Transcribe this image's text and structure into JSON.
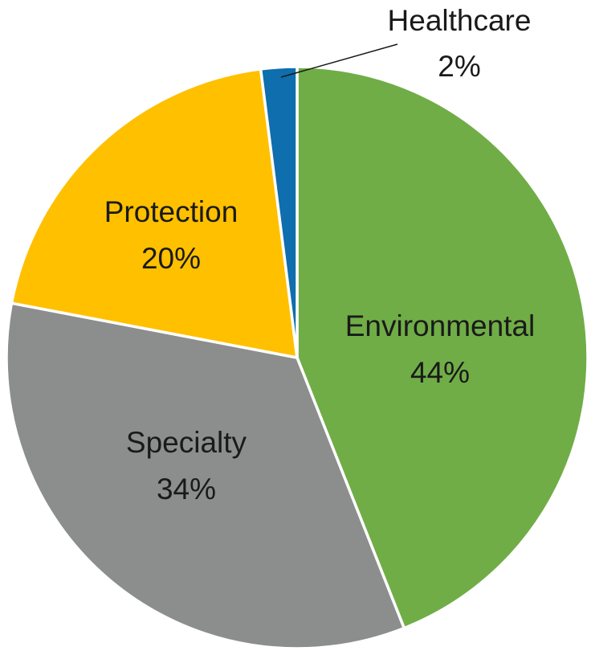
{
  "chart_data": {
    "type": "pie",
    "title": "",
    "start_angle_deg": 0,
    "direction": "clockwise",
    "slices": [
      {
        "name": "Environmental",
        "value": 44,
        "label": "44%",
        "color": "#70AD47"
      },
      {
        "name": "Specialty",
        "value": 34,
        "label": "34%",
        "color": "#8C8E8D"
      },
      {
        "name": "Protection",
        "value": 20,
        "label": "20%",
        "color": "#FFC000"
      },
      {
        "name": "Healthcare",
        "value": 2,
        "label": "2%",
        "color": "#0E6EAE"
      }
    ],
    "separator_color": "#ffffff",
    "leader_line_color": "#1a1a1a"
  }
}
